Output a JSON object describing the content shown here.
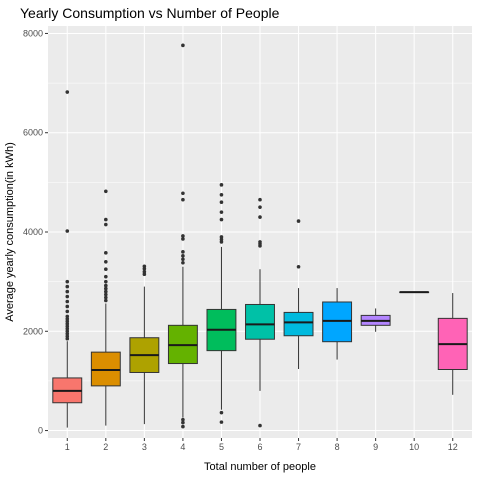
{
  "chart_data": {
    "type": "boxplot",
    "title": "Yearly Consumption vs Number of People",
    "xlabel": "Total number of people",
    "ylabel": "Average yearly consumption(in kWh)",
    "ylim": [
      -150,
      8150
    ],
    "yticks": [
      0,
      2000,
      4000,
      6000,
      8000
    ],
    "grid": true,
    "legend": "none",
    "categories": [
      "1",
      "2",
      "3",
      "4",
      "5",
      "6",
      "7",
      "8",
      "9",
      "10",
      "12"
    ],
    "series": [
      {
        "category": "1",
        "color": "#F8766D",
        "q1": 560,
        "median": 800,
        "q3": 1060,
        "whisker_low": 60,
        "whisker_high": 1800,
        "outliers": [
          1850,
          1900,
          1950,
          2000,
          2050,
          2100,
          2150,
          2200,
          2250,
          2300,
          2400,
          2500,
          2600,
          2700,
          2800,
          2900,
          3000,
          4020,
          6820
        ]
      },
      {
        "category": "2",
        "color": "#DB8E00",
        "q1": 900,
        "median": 1220,
        "q3": 1580,
        "whisker_low": 100,
        "whisker_high": 2560,
        "outliers": [
          2620,
          2680,
          2740,
          2800,
          2860,
          2920,
          3000,
          3100,
          3250,
          3400,
          3580,
          4150,
          4250,
          4820
        ]
      },
      {
        "category": "3",
        "color": "#AEA200",
        "q1": 1170,
        "median": 1520,
        "q3": 1870,
        "whisker_low": 130,
        "whisker_high": 2900,
        "outliers": [
          3150,
          3200,
          3260,
          3310
        ]
      },
      {
        "category": "4",
        "color": "#64B200",
        "q1": 1350,
        "median": 1720,
        "q3": 2120,
        "whisker_low": 260,
        "whisker_high": 3300,
        "outliers": [
          80,
          160,
          220,
          3380,
          3450,
          3520,
          3600,
          3860,
          3920,
          4650,
          4780,
          7760
        ]
      },
      {
        "category": "5",
        "color": "#00BD5C",
        "q1": 1610,
        "median": 2030,
        "q3": 2440,
        "whisker_low": 420,
        "whisker_high": 3700,
        "outliers": [
          170,
          360,
          3800,
          3850,
          3900,
          4250,
          4400,
          4600,
          4750,
          4950
        ]
      },
      {
        "category": "6",
        "color": "#00C1A7",
        "q1": 1840,
        "median": 2140,
        "q3": 2540,
        "whisker_low": 800,
        "whisker_high": 3250,
        "outliers": [
          100,
          3720,
          3760,
          3800,
          4300,
          4500,
          4650
        ]
      },
      {
        "category": "7",
        "color": "#00BADE",
        "q1": 1910,
        "median": 2180,
        "q3": 2380,
        "whisker_low": 1240,
        "whisker_high": 2870,
        "outliers": [
          3300,
          4220
        ]
      },
      {
        "category": "8",
        "color": "#00A6FF",
        "q1": 1790,
        "median": 2210,
        "q3": 2590,
        "whisker_low": 1430,
        "whisker_high": 2870,
        "outliers": []
      },
      {
        "category": "9",
        "color": "#B385FF",
        "q1": 2120,
        "median": 2210,
        "q3": 2320,
        "whisker_low": 1990,
        "whisker_high": 2460,
        "outliers": []
      },
      {
        "category": "10",
        "color": "#EF67EB",
        "q1": 2790,
        "median": 2790,
        "q3": 2790,
        "whisker_low": 2790,
        "whisker_high": 2790,
        "outliers": []
      },
      {
        "category": "12",
        "color": "#FF63B6",
        "q1": 1230,
        "median": 1740,
        "q3": 2260,
        "whisker_low": 720,
        "whisker_high": 2770,
        "outliers": []
      }
    ]
  }
}
